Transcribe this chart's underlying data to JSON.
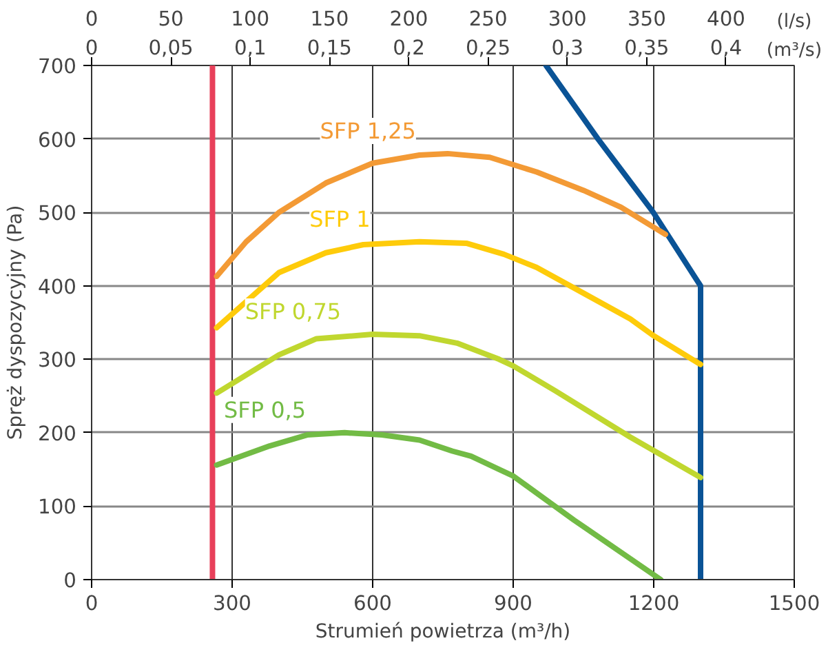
{
  "chart_data": {
    "type": "line",
    "xlabel": "Strumień powietrza (m³/h)",
    "ylabel": "Spręż dyspozycyjny (Pa)",
    "x2label": "(l/s)",
    "annotations": [
      "0",
      "0,05",
      "0,1",
      "0,15",
      "0,2",
      "0,25",
      "0,3",
      "0,35",
      "0,4",
      "(m³/s)"
    ],
    "xlim": [
      0,
      1500
    ],
    "xticks": [
      0,
      300,
      600,
      900,
      1200,
      1500
    ],
    "ylim": [
      0,
      700
    ],
    "yticks": [
      0,
      100,
      200,
      300,
      400,
      500,
      600,
      700
    ],
    "x2lim": [
      0,
      443
    ],
    "x2ticks": [
      0,
      50,
      100,
      150,
      200,
      250,
      300,
      350,
      400
    ],
    "grid": true,
    "marker": "none",
    "line_style": "solid",
    "series": [
      {
        "color": "#e8405a",
        "x": [
          258,
          258
        ],
        "values": [
          0,
          700
        ]
      },
      {
        "color": "#0a5396",
        "x": [
          970,
          1081,
          1198,
          1300,
          1300
        ],
        "values": [
          700,
          600,
          501,
          400,
          0
        ]
      },
      {
        "name": "SFP 1,25",
        "color": "#f39a35",
        "x": [
          267,
          330,
          400,
          500,
          600,
          700,
          760,
          850,
          950,
          1050,
          1130,
          1225
        ],
        "values": [
          413,
          460,
          500,
          540,
          567,
          578,
          580,
          575,
          555,
          530,
          507,
          470
        ]
      },
      {
        "name": "SFP 1",
        "color": "#fecb0a",
        "x": [
          267,
          400,
          500,
          580,
          700,
          800,
          880,
          950,
          1050,
          1150,
          1200,
          1300
        ],
        "values": [
          343,
          418,
          445,
          456,
          460,
          458,
          443,
          425,
          390,
          355,
          332,
          293
        ]
      },
      {
        "name": "SFP 0,75",
        "color": "#c0d72f",
        "x": [
          267,
          400,
          480,
          600,
          700,
          780,
          870,
          900,
          990,
          1150,
          1300
        ],
        "values": [
          254,
          306,
          328,
          334,
          332,
          322,
          300,
          291,
          257,
          194,
          139
        ]
      },
      {
        "name": "SFP 0,5",
        "color": "#72bb45",
        "x": [
          267,
          380,
          460,
          540,
          620,
          700,
          770,
          810,
          870,
          900,
          1030,
          1215
        ],
        "values": [
          156,
          182,
          197,
          200,
          197,
          190,
          175,
          168,
          150,
          141,
          81,
          0
        ]
      }
    ]
  }
}
